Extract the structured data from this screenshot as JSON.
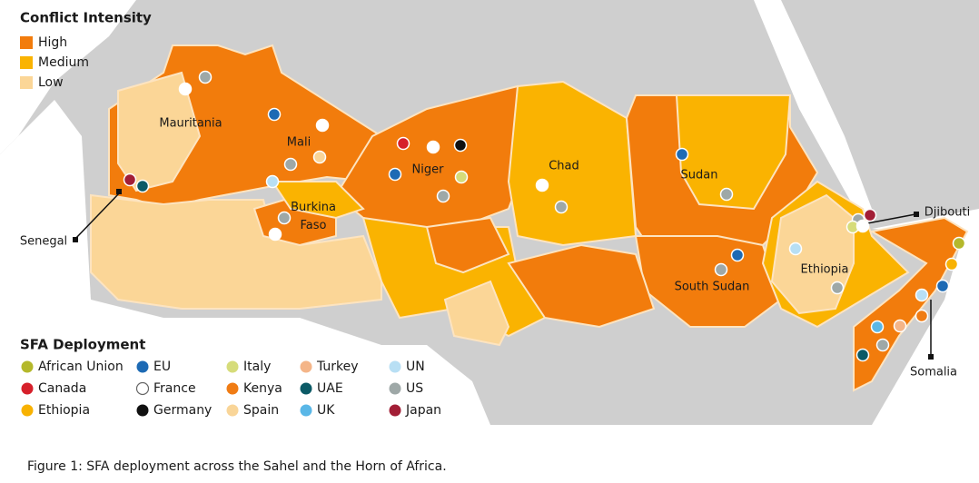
{
  "intensity_legend": {
    "title": "Conflict Intensity",
    "items": [
      {
        "label": "High",
        "color": "#f27c0c"
      },
      {
        "label": "Medium",
        "color": "#fab301"
      },
      {
        "label": "Low",
        "color": "#fbd697"
      }
    ]
  },
  "deployment_legend": {
    "title": "SFA Deployment",
    "items": [
      {
        "label": "African Union",
        "color": "#b4b82b"
      },
      {
        "label": "Canada",
        "color": "#d6202b"
      },
      {
        "label": "Ethiopia",
        "color": "#f8b202"
      },
      {
        "label": "EU",
        "color": "#1d6ab4"
      },
      {
        "label": "France",
        "color": "#ffffff"
      },
      {
        "label": "Germany",
        "color": "#111111"
      },
      {
        "label": "Italy",
        "color": "#d6dc7a"
      },
      {
        "label": "Kenya",
        "color": "#f07c14"
      },
      {
        "label": "Spain",
        "color": "#f9d598"
      },
      {
        "label": "Turkey",
        "color": "#f4b588"
      },
      {
        "label": "UAE",
        "color": "#0c5a66"
      },
      {
        "label": "UK",
        "color": "#5ab7e7"
      },
      {
        "label": "UN",
        "color": "#b8dff4"
      },
      {
        "label": "US",
        "color": "#9ea8a7"
      },
      {
        "label": "Japan",
        "color": "#a21e36"
      }
    ]
  },
  "map_labels": [
    "Mauritania",
    "Mali",
    "Niger",
    "Chad",
    "Sudan",
    "Burkina Faso",
    "South Sudan",
    "Ethiopia",
    "Senegal",
    "Djibouti",
    "Somalia"
  ],
  "caption": "Figure 1: SFA deployment across the Sahel and the Horn of Africa."
}
